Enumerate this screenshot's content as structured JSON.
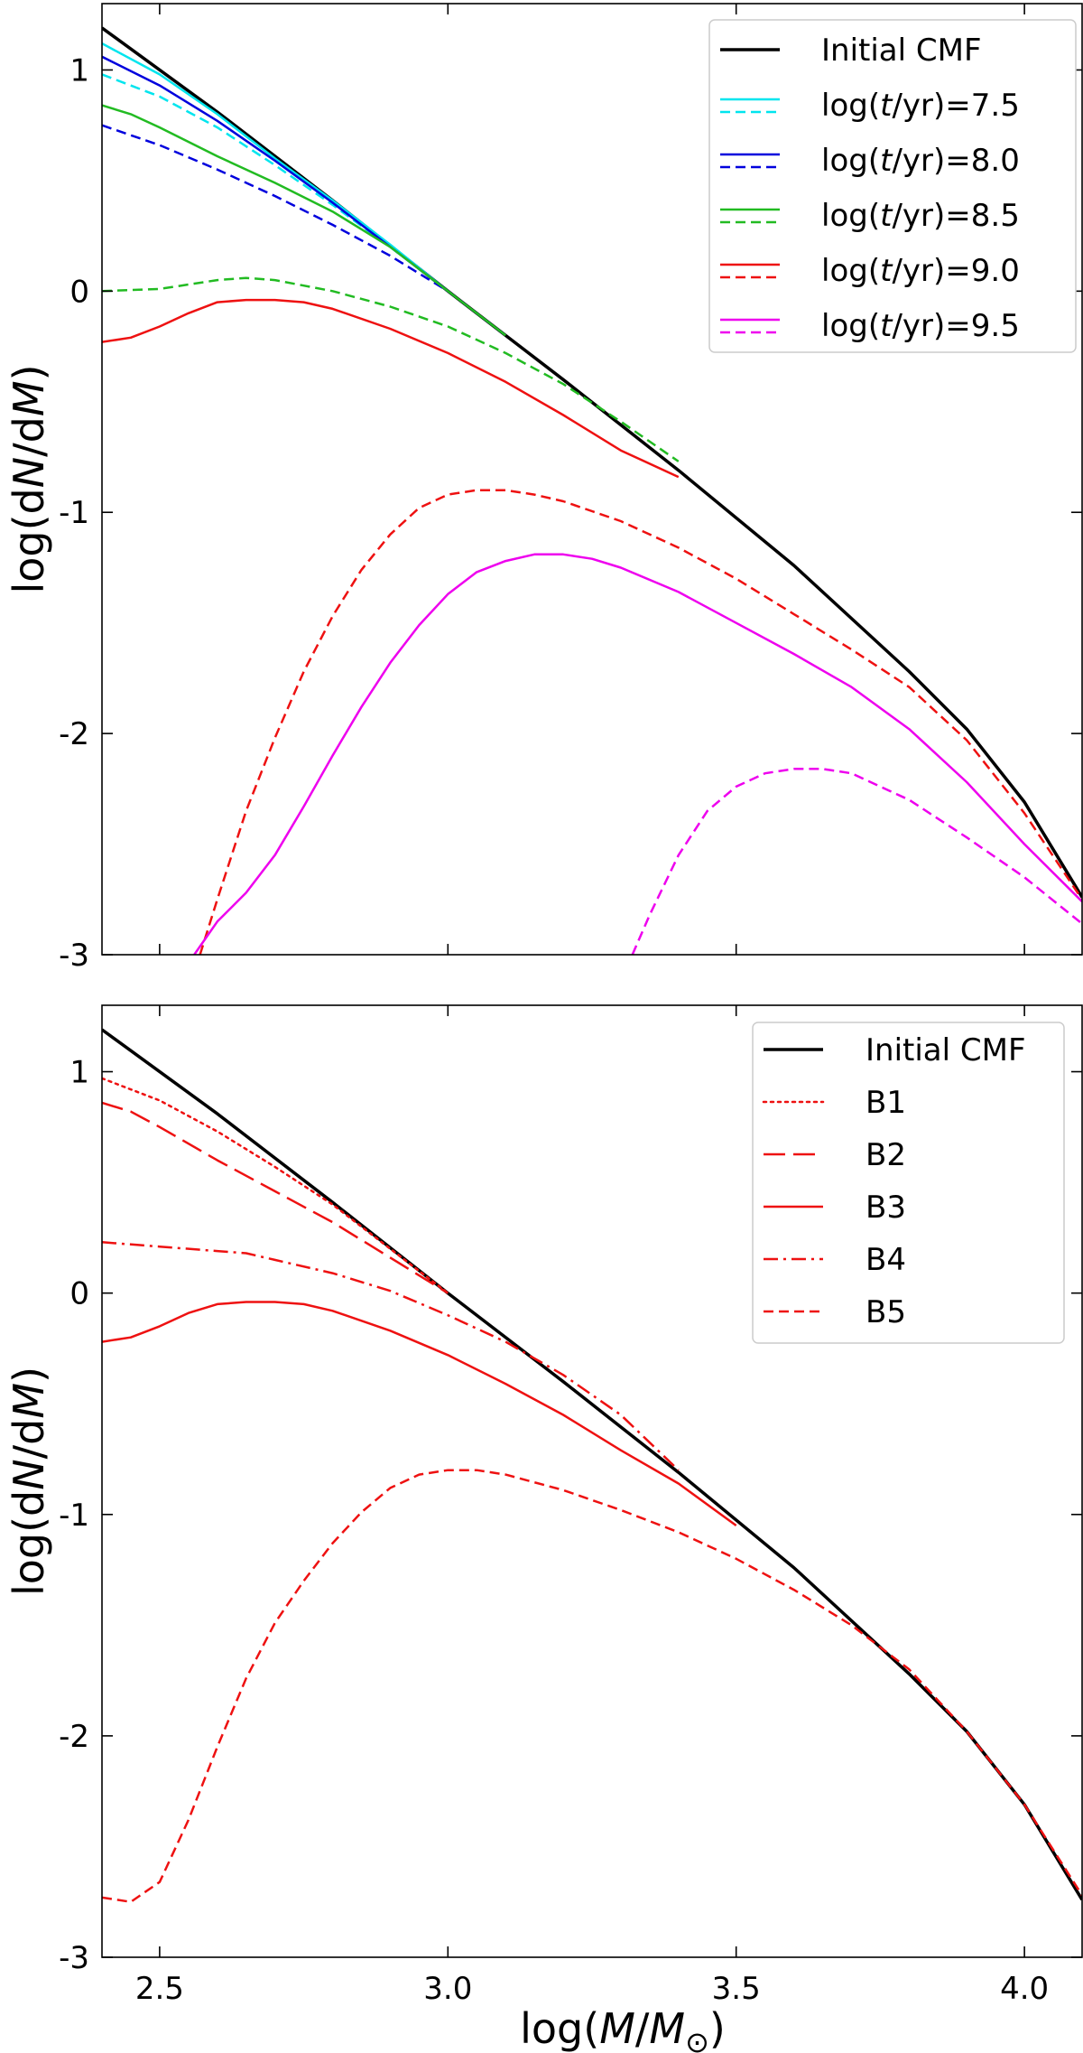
{
  "chart_data": [
    {
      "type": "line",
      "panel": "top",
      "xlabel": "log(M/M⊙)",
      "ylabel": "log(dN/dM)",
      "xlim": [
        2.4,
        4.1
      ],
      "ylim": [
        -3,
        1.3
      ],
      "xticks": [
        2.5,
        3.0,
        3.5,
        4.0
      ],
      "xtick_labels": [
        "",
        "",
        "",
        ""
      ],
      "yticks": [
        1,
        0,
        -1,
        -2,
        -3
      ],
      "ytick_labels": [
        "1",
        "0",
        "-1",
        "-2",
        "-3"
      ],
      "legend_position": "top-right",
      "legend": [
        {
          "label": "Initial CMF",
          "color": "#000000",
          "styles": [
            "solid"
          ]
        },
        {
          "label": "log(t/yr)=7.5",
          "color": "#00e5ee",
          "styles": [
            "solid",
            "dashed"
          ]
        },
        {
          "label": "log(t/yr)=8.0",
          "color": "#0000dd",
          "styles": [
            "solid",
            "dashed"
          ]
        },
        {
          "label": "log(t/yr)=8.5",
          "color": "#22bb22",
          "styles": [
            "solid",
            "dashed"
          ]
        },
        {
          "label": "log(t/yr)=9.0",
          "color": "#ee1111",
          "styles": [
            "solid",
            "dashed"
          ]
        },
        {
          "label": "log(t/yr)=9.5",
          "color": "#ee00ee",
          "styles": [
            "solid",
            "dashed"
          ]
        }
      ],
      "series": [
        {
          "name": "Initial CMF",
          "color": "#000000",
          "style": "solid",
          "width": 3.5,
          "x": [
            2.4,
            2.6,
            2.8,
            3.0,
            3.2,
            3.4,
            3.6,
            3.8,
            3.9,
            4.0,
            4.1
          ],
          "y": [
            1.19,
            0.81,
            0.41,
            0.0,
            -0.4,
            -0.81,
            -1.24,
            -1.72,
            -1.98,
            -2.31,
            -2.74
          ]
        },
        {
          "name": "log(t/yr)=7.5 a",
          "color": "#00e5ee",
          "style": "solid",
          "width": 2.5,
          "x": [
            2.4,
            2.5,
            2.6,
            2.7,
            2.8,
            2.9,
            3.0
          ],
          "y": [
            1.12,
            0.98,
            0.8,
            0.6,
            0.41,
            0.21,
            0.0
          ]
        },
        {
          "name": "log(t/yr)=7.5 b",
          "color": "#00e5ee",
          "style": "dashed",
          "width": 2.5,
          "x": [
            2.4,
            2.5,
            2.6,
            2.7,
            2.8,
            2.9,
            3.0
          ],
          "y": [
            0.98,
            0.88,
            0.74,
            0.57,
            0.39,
            0.2,
            0.0
          ]
        },
        {
          "name": "log(t/yr)=8.0 a",
          "color": "#0000dd",
          "style": "solid",
          "width": 2.5,
          "x": [
            2.4,
            2.5,
            2.6,
            2.7,
            2.8,
            2.9,
            3.0
          ],
          "y": [
            1.06,
            0.93,
            0.77,
            0.59,
            0.4,
            0.2,
            0.0
          ]
        },
        {
          "name": "log(t/yr)=8.0 b",
          "color": "#0000dd",
          "style": "dashed",
          "width": 2.5,
          "x": [
            2.4,
            2.5,
            2.6,
            2.7,
            2.8,
            2.9,
            3.0,
            3.1
          ],
          "y": [
            0.75,
            0.66,
            0.55,
            0.43,
            0.3,
            0.16,
            0.0,
            -0.2
          ]
        },
        {
          "name": "log(t/yr)=8.5 a",
          "color": "#22bb22",
          "style": "solid",
          "width": 2.5,
          "x": [
            2.4,
            2.45,
            2.5,
            2.6,
            2.7,
            2.8,
            2.9,
            3.0,
            3.1
          ],
          "y": [
            0.84,
            0.8,
            0.74,
            0.61,
            0.49,
            0.36,
            0.2,
            0.0,
            -0.2
          ]
        },
        {
          "name": "log(t/yr)=8.5 b",
          "color": "#22bb22",
          "style": "dashed",
          "width": 2.5,
          "x": [
            2.4,
            2.5,
            2.55,
            2.6,
            2.65,
            2.7,
            2.8,
            2.9,
            3.0,
            3.1,
            3.2,
            3.3,
            3.4
          ],
          "y": [
            0.0,
            0.01,
            0.03,
            0.05,
            0.06,
            0.05,
            0.0,
            -0.07,
            -0.16,
            -0.28,
            -0.42,
            -0.59,
            -0.77
          ]
        },
        {
          "name": "log(t/yr)=9.0 a",
          "color": "#ee1111",
          "style": "solid",
          "width": 2.5,
          "x": [
            2.4,
            2.45,
            2.5,
            2.55,
            2.6,
            2.65,
            2.7,
            2.75,
            2.8,
            2.9,
            3.0,
            3.1,
            3.2,
            3.3,
            3.4
          ],
          "y": [
            -0.23,
            -0.21,
            -0.16,
            -0.1,
            -0.05,
            -0.04,
            -0.04,
            -0.05,
            -0.08,
            -0.17,
            -0.28,
            -0.41,
            -0.56,
            -0.72,
            -0.84
          ]
        },
        {
          "name": "log(t/yr)=9.0 b",
          "color": "#ee1111",
          "style": "dashed",
          "width": 2.5,
          "x": [
            2.57,
            2.6,
            2.65,
            2.7,
            2.75,
            2.8,
            2.85,
            2.9,
            2.95,
            3.0,
            3.05,
            3.1,
            3.15,
            3.2,
            3.3,
            3.4,
            3.5,
            3.6,
            3.7,
            3.8,
            3.9,
            4.0,
            4.1
          ],
          "y": [
            -3.0,
            -2.75,
            -2.35,
            -2.02,
            -1.72,
            -1.47,
            -1.26,
            -1.1,
            -0.98,
            -0.92,
            -0.9,
            -0.9,
            -0.92,
            -0.95,
            -1.04,
            -1.16,
            -1.3,
            -1.46,
            -1.62,
            -1.79,
            -2.03,
            -2.36,
            -2.75
          ]
        },
        {
          "name": "log(t/yr)=9.5 a",
          "color": "#ee00ee",
          "style": "solid",
          "width": 2.5,
          "x": [
            2.56,
            2.6,
            2.65,
            2.7,
            2.75,
            2.8,
            2.85,
            2.9,
            2.95,
            3.0,
            3.05,
            3.1,
            3.15,
            3.2,
            3.25,
            3.3,
            3.4,
            3.5,
            3.6,
            3.7,
            3.8,
            3.9,
            4.0,
            4.1
          ],
          "y": [
            -3.0,
            -2.85,
            -2.72,
            -2.55,
            -2.33,
            -2.1,
            -1.88,
            -1.68,
            -1.51,
            -1.37,
            -1.27,
            -1.22,
            -1.19,
            -1.19,
            -1.21,
            -1.25,
            -1.36,
            -1.5,
            -1.64,
            -1.79,
            -1.98,
            -2.22,
            -2.5,
            -2.76
          ]
        },
        {
          "name": "log(t/yr)=9.5 b",
          "color": "#ee00ee",
          "style": "dashed",
          "width": 2.5,
          "x": [
            3.32,
            3.35,
            3.4,
            3.45,
            3.5,
            3.55,
            3.6,
            3.65,
            3.7,
            3.8,
            3.9,
            4.0,
            4.1
          ],
          "y": [
            -3.0,
            -2.82,
            -2.55,
            -2.35,
            -2.24,
            -2.18,
            -2.16,
            -2.16,
            -2.18,
            -2.3,
            -2.47,
            -2.65,
            -2.86
          ]
        }
      ]
    },
    {
      "type": "line",
      "panel": "bottom",
      "xlabel": "log(M/M⊙)",
      "ylabel": "log(dN/dM)",
      "xlim": [
        2.4,
        4.1
      ],
      "ylim": [
        -3,
        1.3
      ],
      "xticks": [
        2.5,
        3.0,
        3.5,
        4.0
      ],
      "xtick_labels": [
        "2.5",
        "3.0",
        "3.5",
        "4.0"
      ],
      "yticks": [
        1,
        0,
        -1,
        -2,
        -3
      ],
      "ytick_labels": [
        "1",
        "0",
        "-1",
        "-2",
        "-3"
      ],
      "legend_position": "top-right",
      "legend": [
        {
          "label": "Initial CMF",
          "color": "#000000",
          "styles": [
            "solid"
          ]
        },
        {
          "label": "B1",
          "color": "#ee1111",
          "styles": [
            "dotted"
          ]
        },
        {
          "label": "B2",
          "color": "#ee1111",
          "styles": [
            "longdash"
          ]
        },
        {
          "label": "B3",
          "color": "#ee1111",
          "styles": [
            "solid"
          ]
        },
        {
          "label": "B4",
          "color": "#ee1111",
          "styles": [
            "dashdot"
          ]
        },
        {
          "label": "B5",
          "color": "#ee1111",
          "styles": [
            "dashed"
          ]
        }
      ],
      "series": [
        {
          "name": "Initial CMF",
          "color": "#000000",
          "style": "solid",
          "width": 3.5,
          "x": [
            2.4,
            2.6,
            2.8,
            3.0,
            3.2,
            3.4,
            3.6,
            3.8,
            3.9,
            4.0,
            4.1
          ],
          "y": [
            1.19,
            0.81,
            0.41,
            0.0,
            -0.4,
            -0.81,
            -1.24,
            -1.72,
            -1.98,
            -2.31,
            -2.74
          ]
        },
        {
          "name": "B1",
          "color": "#ee1111",
          "style": "dotted",
          "width": 2.5,
          "x": [
            2.4,
            2.5,
            2.6,
            2.7,
            2.8,
            2.9,
            3.0
          ],
          "y": [
            0.97,
            0.87,
            0.73,
            0.57,
            0.4,
            0.2,
            0.0
          ]
        },
        {
          "name": "B2",
          "color": "#ee1111",
          "style": "longdash",
          "width": 2.5,
          "x": [
            2.4,
            2.45,
            2.5,
            2.6,
            2.7,
            2.8,
            2.9,
            3.0
          ],
          "y": [
            0.86,
            0.82,
            0.75,
            0.6,
            0.46,
            0.32,
            0.16,
            0.0
          ]
        },
        {
          "name": "B3",
          "color": "#ee1111",
          "style": "solid",
          "width": 2.5,
          "x": [
            2.4,
            2.45,
            2.5,
            2.55,
            2.6,
            2.65,
            2.7,
            2.75,
            2.8,
            2.9,
            3.0,
            3.1,
            3.2,
            3.3,
            3.4,
            3.5
          ],
          "y": [
            -0.22,
            -0.2,
            -0.15,
            -0.09,
            -0.05,
            -0.04,
            -0.04,
            -0.05,
            -0.08,
            -0.17,
            -0.28,
            -0.41,
            -0.55,
            -0.71,
            -0.86,
            -1.05
          ]
        },
        {
          "name": "B4",
          "color": "#ee1111",
          "style": "dashdot",
          "width": 2.5,
          "x": [
            2.4,
            2.5,
            2.6,
            2.65,
            2.7,
            2.8,
            2.9,
            3.0,
            3.1,
            3.2,
            3.3,
            3.4
          ],
          "y": [
            0.23,
            0.21,
            0.19,
            0.18,
            0.15,
            0.09,
            0.01,
            -0.1,
            -0.22,
            -0.37,
            -0.55,
            -0.8
          ]
        },
        {
          "name": "B5",
          "color": "#ee1111",
          "style": "dashed",
          "width": 2.5,
          "x": [
            2.4,
            2.45,
            2.5,
            2.55,
            2.6,
            2.65,
            2.7,
            2.75,
            2.8,
            2.85,
            2.9,
            2.95,
            3.0,
            3.05,
            3.1,
            3.2,
            3.3,
            3.4,
            3.5,
            3.6,
            3.7,
            3.8,
            3.9,
            4.0,
            4.1
          ],
          "y": [
            -2.73,
            -2.75,
            -2.66,
            -2.38,
            -2.05,
            -1.74,
            -1.49,
            -1.3,
            -1.13,
            -0.99,
            -0.88,
            -0.82,
            -0.8,
            -0.8,
            -0.82,
            -0.89,
            -0.98,
            -1.08,
            -1.2,
            -1.34,
            -1.5,
            -1.7,
            -1.98,
            -2.31,
            -2.72
          ]
        }
      ]
    }
  ]
}
